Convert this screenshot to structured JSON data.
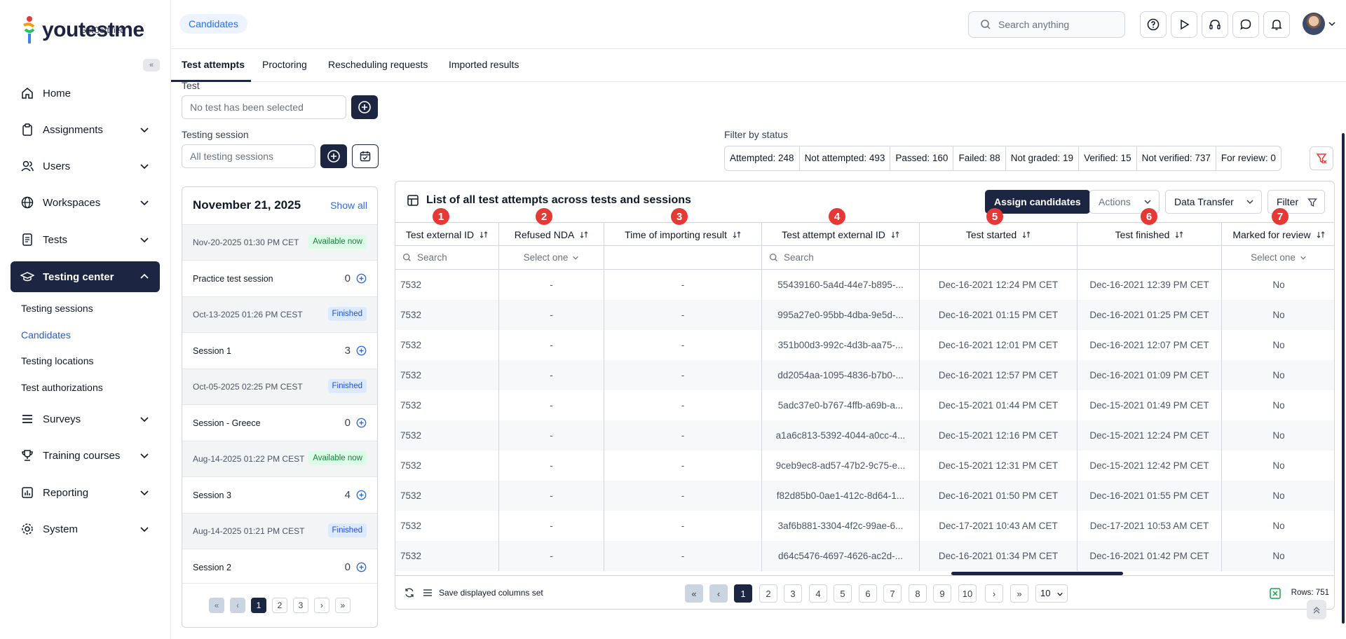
{
  "brand": {
    "name": "youtestme",
    "sub": "GetCertified"
  },
  "sidebar": {
    "items": [
      {
        "label": "Home",
        "icon": "home-icon"
      },
      {
        "label": "Assignments",
        "icon": "clipboard-icon"
      },
      {
        "label": "Users",
        "icon": "users-icon"
      },
      {
        "label": "Workspaces",
        "icon": "globe-icon"
      },
      {
        "label": "Tests",
        "icon": "test-icon"
      },
      {
        "label": "Testing center",
        "icon": "graduation-cap-icon"
      },
      {
        "label": "Surveys",
        "icon": "list-icon"
      },
      {
        "label": "Training courses",
        "icon": "trophy-icon"
      },
      {
        "label": "Reporting",
        "icon": "chart-icon"
      },
      {
        "label": "System",
        "icon": "gear-icon"
      }
    ],
    "subitems": [
      "Testing sessions",
      "Candidates",
      "Testing locations",
      "Test authorizations"
    ]
  },
  "header": {
    "breadcrumb": "Candidates",
    "search_placeholder": "Search anything"
  },
  "tabs": [
    "Test attempts",
    "Proctoring",
    "Rescheduling requests",
    "Imported results"
  ],
  "filters": {
    "test_label": "Test",
    "test_placeholder": "No test has been selected",
    "session_label": "Testing session",
    "session_placeholder": "All testing sessions",
    "status_label": "Filter by status",
    "statuses": [
      "Attempted: 248",
      "Not attempted: 493",
      "Passed: 160",
      "Failed: 88",
      "Not graded: 19",
      "Verified: 15",
      "Not verified: 737",
      "For review: 0"
    ]
  },
  "sessions_panel": {
    "date": "November 21, 2025",
    "show_all": "Show all",
    "sessions": [
      {
        "datetime": "Nov-20-2025 01:30 PM CET",
        "badge": "Available now",
        "status": "available",
        "name": "Practice test session",
        "count": "0"
      },
      {
        "datetime": "Oct-13-2025 01:26 PM CEST",
        "badge": "Finished",
        "status": "finished",
        "name": "Session 1",
        "count": "3"
      },
      {
        "datetime": "Oct-05-2025 02:25 PM CEST",
        "badge": "Finished",
        "status": "finished",
        "name": "Session - Greece",
        "count": "0"
      },
      {
        "datetime": "Aug-14-2025 01:22 PM CEST",
        "badge": "Available now",
        "status": "available",
        "name": "Session 3",
        "count": "4"
      },
      {
        "datetime": "Aug-14-2025 01:21 PM CEST",
        "badge": "Finished",
        "status": "finished",
        "name": "Session 2",
        "count": "0"
      }
    ],
    "pages": [
      "1",
      "2",
      "3"
    ]
  },
  "table": {
    "title": "List of all test attempts across tests and sessions",
    "assign_label": "Assign candidates",
    "actions_label": "Actions",
    "transfer_label": "Data Transfer",
    "filter_label": "Filter",
    "search_placeholder": "Search",
    "select_placeholder": "Select one",
    "columns": [
      "Test external ID",
      "Refused NDA",
      "Time of importing result",
      "Test attempt external ID",
      "Test started",
      "Test finished",
      "Marked for review"
    ],
    "markers": [
      "1",
      "2",
      "3",
      "4",
      "5",
      "6",
      "7"
    ],
    "rows": [
      [
        "7532",
        "-",
        "-",
        "55439160-5a4d-44e7-b895-...",
        "Dec-16-2021 12:24 PM CET",
        "Dec-16-2021 12:39 PM CET",
        "No"
      ],
      [
        "7532",
        "-",
        "-",
        "995a27e0-95bb-4dba-9e5d-...",
        "Dec-16-2021 01:15 PM CET",
        "Dec-16-2021 01:25 PM CET",
        "No"
      ],
      [
        "7532",
        "-",
        "-",
        "351b00d3-992c-4d3b-aa75-...",
        "Dec-16-2021 12:01 PM CET",
        "Dec-16-2021 12:07 PM CET",
        "No"
      ],
      [
        "7532",
        "-",
        "-",
        "dd2054aa-1095-4836-b7b0-...",
        "Dec-16-2021 12:57 PM CET",
        "Dec-16-2021 01:09 PM CET",
        "No"
      ],
      [
        "7532",
        "-",
        "-",
        "5adc37e0-b767-4ffb-a69b-a...",
        "Dec-15-2021 01:44 PM CET",
        "Dec-15-2021 01:49 PM CET",
        "No"
      ],
      [
        "7532",
        "-",
        "-",
        "a1a6c813-5392-4044-a0cc-4...",
        "Dec-15-2021 12:16 PM CET",
        "Dec-15-2021 12:24 PM CET",
        "No"
      ],
      [
        "7532",
        "-",
        "-",
        "9ceb9ec8-ad57-47b2-9c75-e...",
        "Dec-15-2021 12:31 PM CET",
        "Dec-15-2021 12:42 PM CET",
        "No"
      ],
      [
        "7532",
        "-",
        "-",
        "f82d85b0-0ae1-412c-8d64-1...",
        "Dec-16-2021 01:50 PM CET",
        "Dec-16-2021 01:55 PM CET",
        "No"
      ],
      [
        "7532",
        "-",
        "-",
        "3af6b881-3304-4f2c-99ae-6...",
        "Dec-17-2021 10:43 AM CET",
        "Dec-17-2021 10:53 AM CET",
        "No"
      ],
      [
        "7532",
        "-",
        "-",
        "d64c5476-4697-4626-ac2d-...",
        "Dec-16-2021 01:34 PM CET",
        "Dec-16-2021 01:42 PM CET",
        "No"
      ]
    ],
    "footer": {
      "save_columns": "Save displayed columns set",
      "pages": [
        "1",
        "2",
        "3",
        "4",
        "5",
        "6",
        "7",
        "8",
        "9",
        "10"
      ],
      "rows_per_page": "10",
      "rows_count": "Rows: 751"
    }
  },
  "colors": {
    "primary": "#1c2541",
    "accent": "#2b6de0",
    "marker": "#e53935"
  }
}
